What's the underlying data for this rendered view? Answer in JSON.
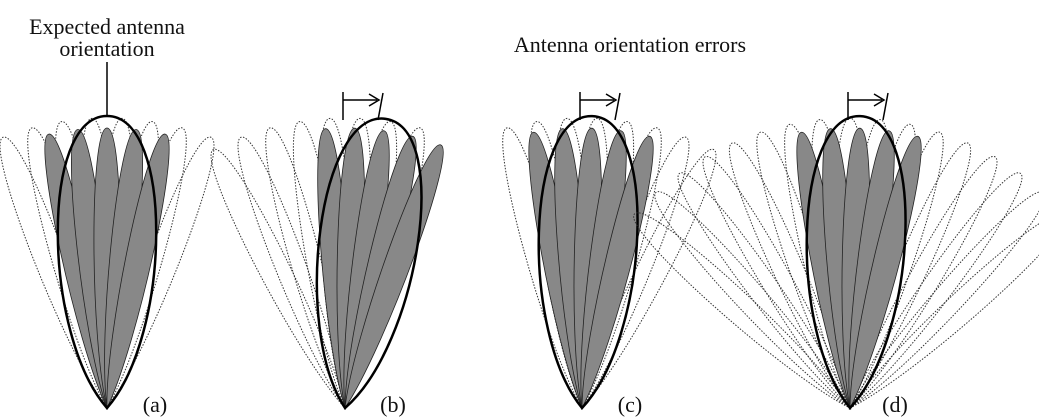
{
  "expected_label": [
    "Expected antenna",
    "orientation"
  ],
  "errors_label": "Antenna orientation errors",
  "panels": [
    {
      "label": "(a)"
    },
    {
      "label": "(b)"
    },
    {
      "label": "(c)"
    },
    {
      "label": "(d)"
    }
  ]
}
